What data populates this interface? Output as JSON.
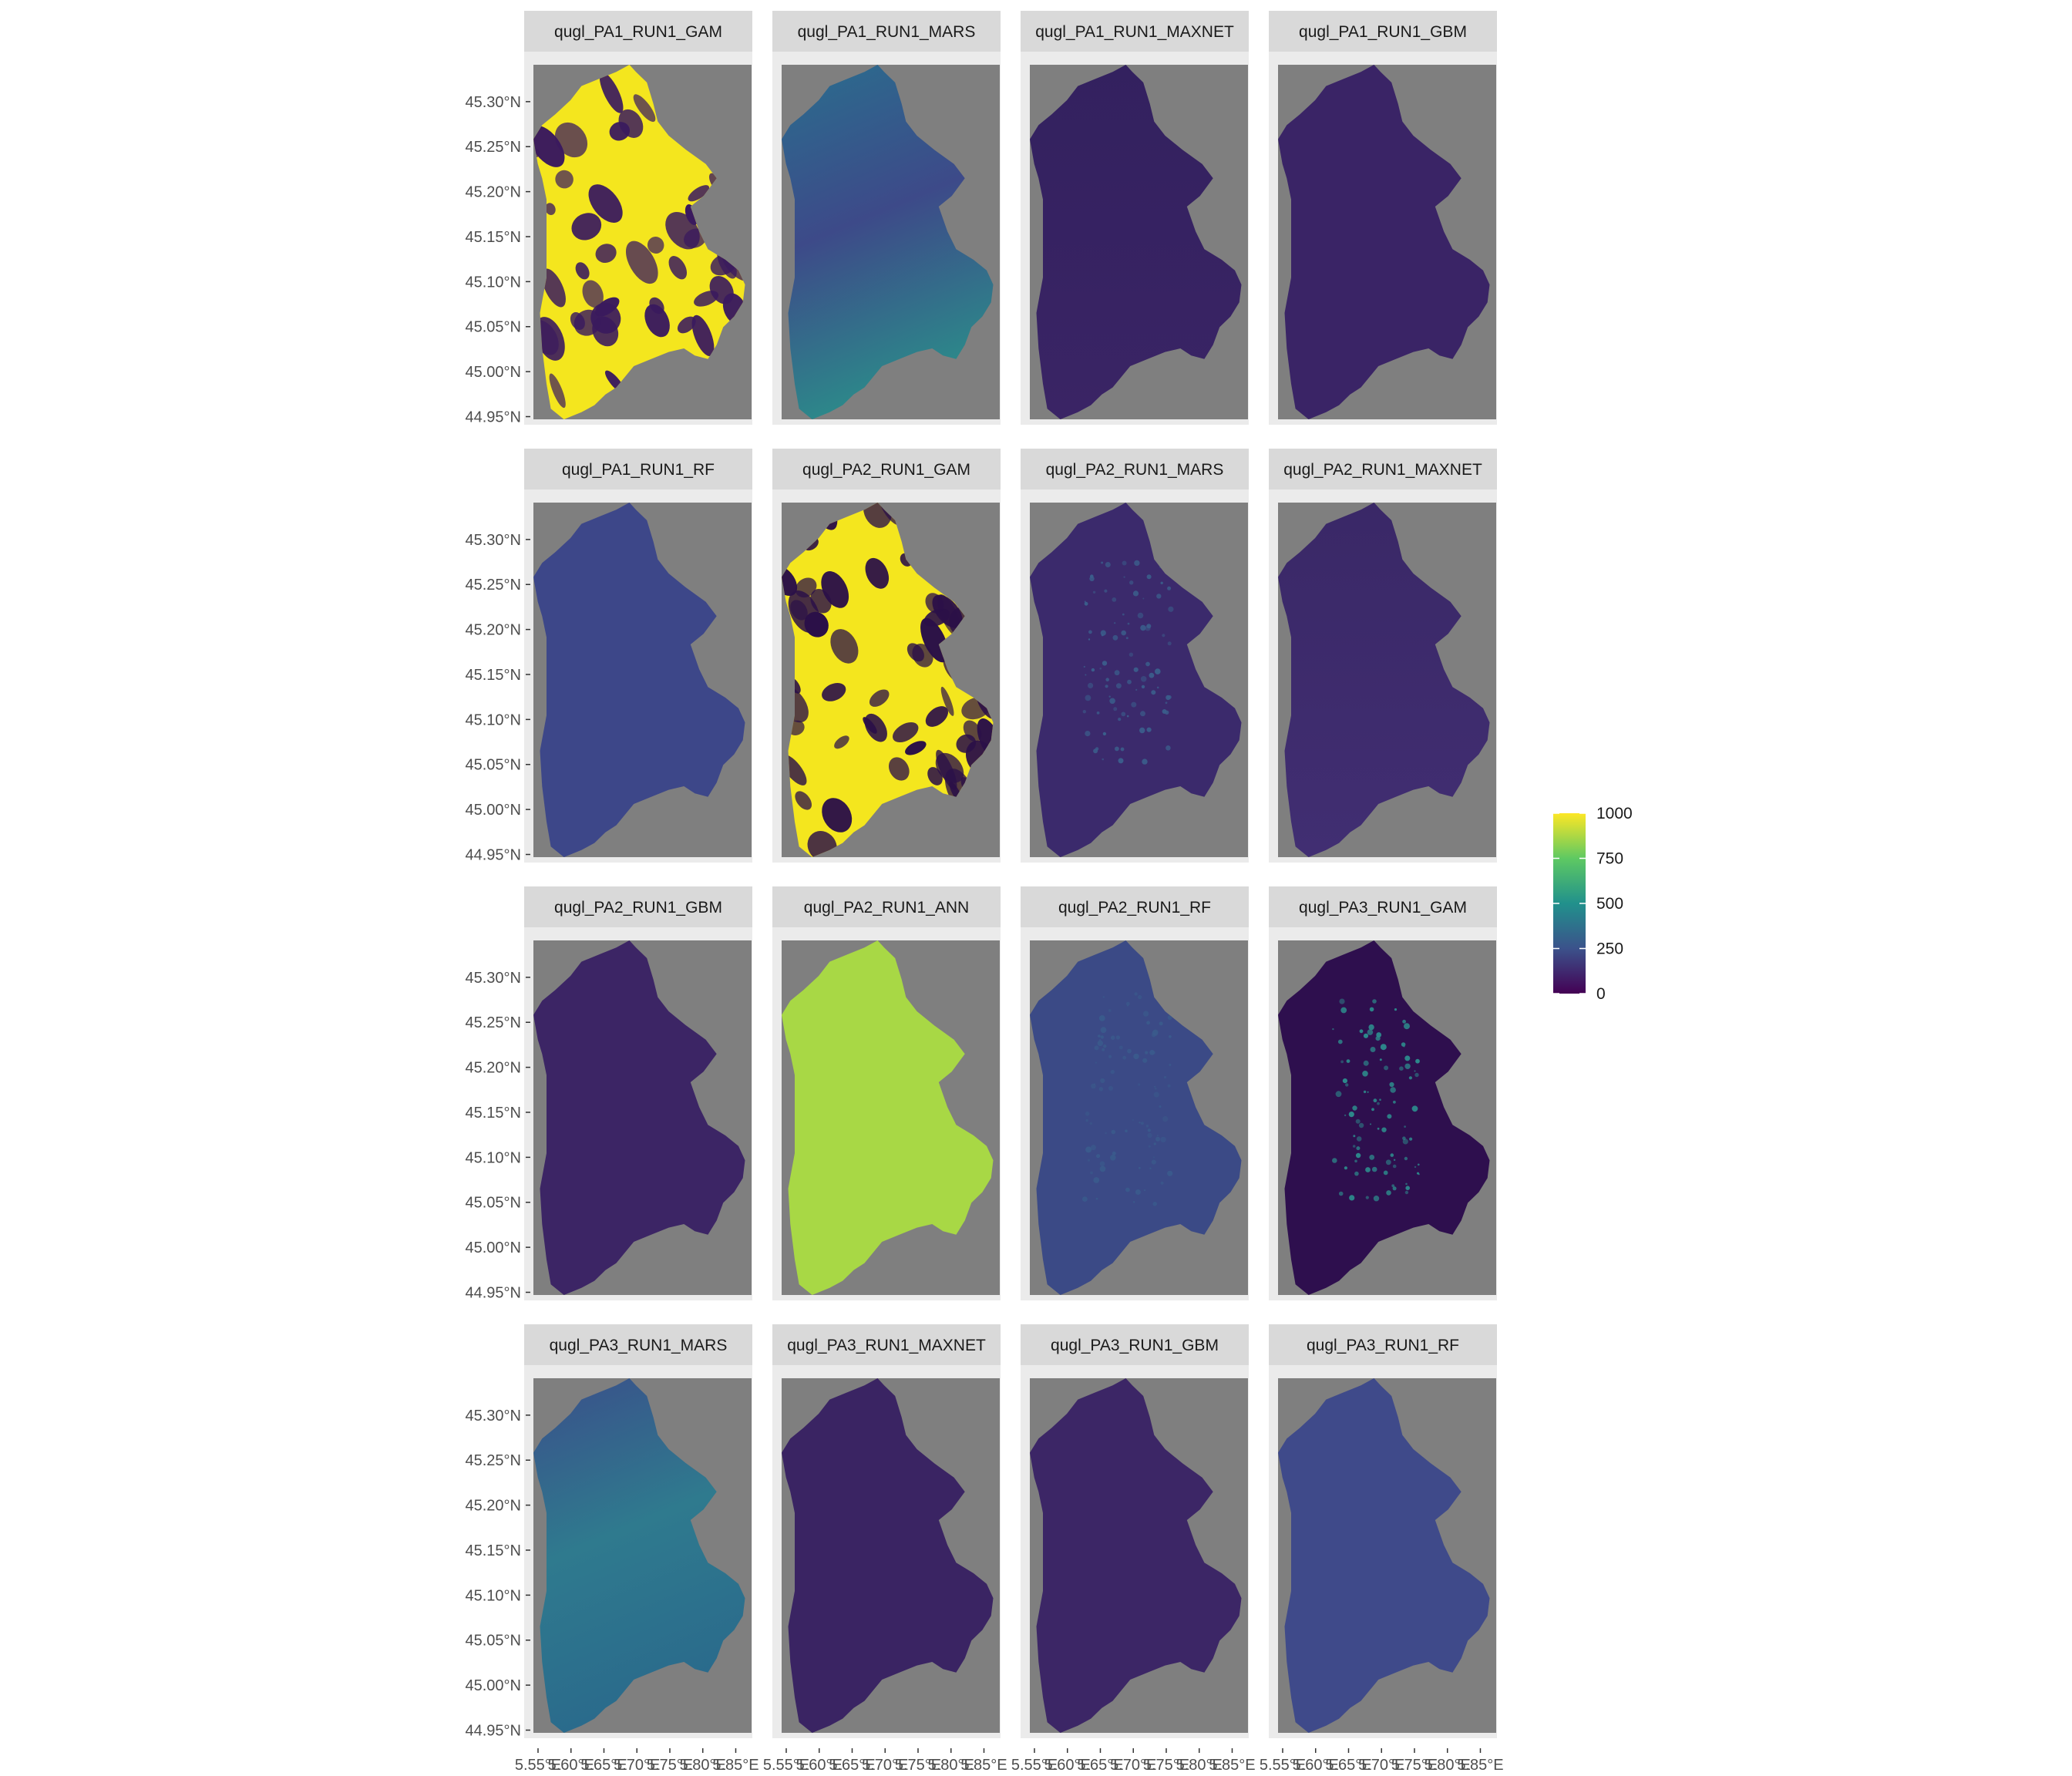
{
  "chart_data": {
    "type": "heatmap",
    "layout": {
      "rows": 4,
      "cols": 4
    },
    "panels": [
      {
        "title": "qugl_PA1_RUN1_GAM",
        "style": "patchy",
        "colors": {
          "base": "#f4e61e",
          "dark": "#3a1a5e"
        }
      },
      {
        "title": "qugl_PA1_RUN1_MARS",
        "style": "gradient",
        "colors": {
          "top": "#2a6e8e",
          "mid": "#3d4a89",
          "bottom": "#2c8a8a"
        }
      },
      {
        "title": "qugl_PA1_RUN1_MAXNET",
        "style": "smooth",
        "colors": {
          "base": "#3a2465",
          "top": "#33215f"
        }
      },
      {
        "title": "qugl_PA1_RUN1_GBM",
        "style": "flat",
        "colors": {
          "base": "#3a2466"
        }
      },
      {
        "title": "qugl_PA1_RUN1_RF",
        "style": "flat",
        "colors": {
          "base": "#3d4789"
        }
      },
      {
        "title": "qugl_PA2_RUN1_GAM",
        "style": "patchy",
        "colors": {
          "base": "#f4e61e",
          "dark": "#2b1048"
        }
      },
      {
        "title": "qugl_PA2_RUN1_MARS",
        "style": "speckled",
        "colors": {
          "base": "#3b2a6c",
          "spot": "#3b5e8c"
        }
      },
      {
        "title": "qugl_PA2_RUN1_MAXNET",
        "style": "smooth",
        "colors": {
          "base": "#412e72",
          "top": "#3a2867"
        }
      },
      {
        "title": "qugl_PA2_RUN1_GBM",
        "style": "flat",
        "colors": {
          "base": "#3c2565"
        }
      },
      {
        "title": "qugl_PA2_RUN1_ANN",
        "style": "flat",
        "colors": {
          "base": "#a8d845"
        }
      },
      {
        "title": "qugl_PA2_RUN1_RF",
        "style": "speckled",
        "colors": {
          "base": "#3b4a86",
          "spot": "#3a5a8c"
        }
      },
      {
        "title": "qugl_PA3_RUN1_GAM",
        "style": "speckled",
        "colors": {
          "base": "#2e0f4e",
          "spot": "#2d8a8c"
        }
      },
      {
        "title": "qugl_PA3_RUN1_MARS",
        "style": "gradient",
        "colors": {
          "top": "#3a4f8a",
          "mid": "#2f7a8e",
          "bottom": "#2a6a8c"
        }
      },
      {
        "title": "qugl_PA3_RUN1_MAXNET",
        "style": "flat",
        "colors": {
          "base": "#3a2463"
        }
      },
      {
        "title": "qugl_PA3_RUN1_GBM",
        "style": "flat",
        "colors": {
          "base": "#3c2666"
        }
      },
      {
        "title": "qugl_PA3_RUN1_RF",
        "style": "flat",
        "colors": {
          "base": "#3f4a8a"
        }
      }
    ],
    "y_axis": {
      "ticks": [
        "45.30°N",
        "45.25°N",
        "45.20°N",
        "45.15°N",
        "45.10°N",
        "45.05°N",
        "45.00°N",
        "44.95°N"
      ],
      "values": [
        45.3,
        45.25,
        45.2,
        45.15,
        45.1,
        45.05,
        45.0,
        44.95
      ],
      "range": [
        44.947,
        45.341
      ]
    },
    "x_axis": {
      "ticks": [
        "5.55°E",
        "5.60°E",
        "5.65°E",
        "5.70°E",
        "5.75°E",
        "5.80°E",
        "5.85°E"
      ],
      "values": [
        5.55,
        5.6,
        5.65,
        5.7,
        5.75,
        5.8,
        5.85
      ],
      "range": [
        5.543,
        5.874
      ]
    },
    "legend": {
      "title": "",
      "position": "right",
      "colorscale": "viridis",
      "range": [
        0,
        1000
      ],
      "ticks": [
        "1000",
        "750",
        "500",
        "250",
        "0"
      ],
      "tick_values": [
        1000,
        750,
        500,
        250,
        0
      ]
    },
    "panel_background": "#7f7f7f",
    "strip_background": "#d9d9d9"
  }
}
